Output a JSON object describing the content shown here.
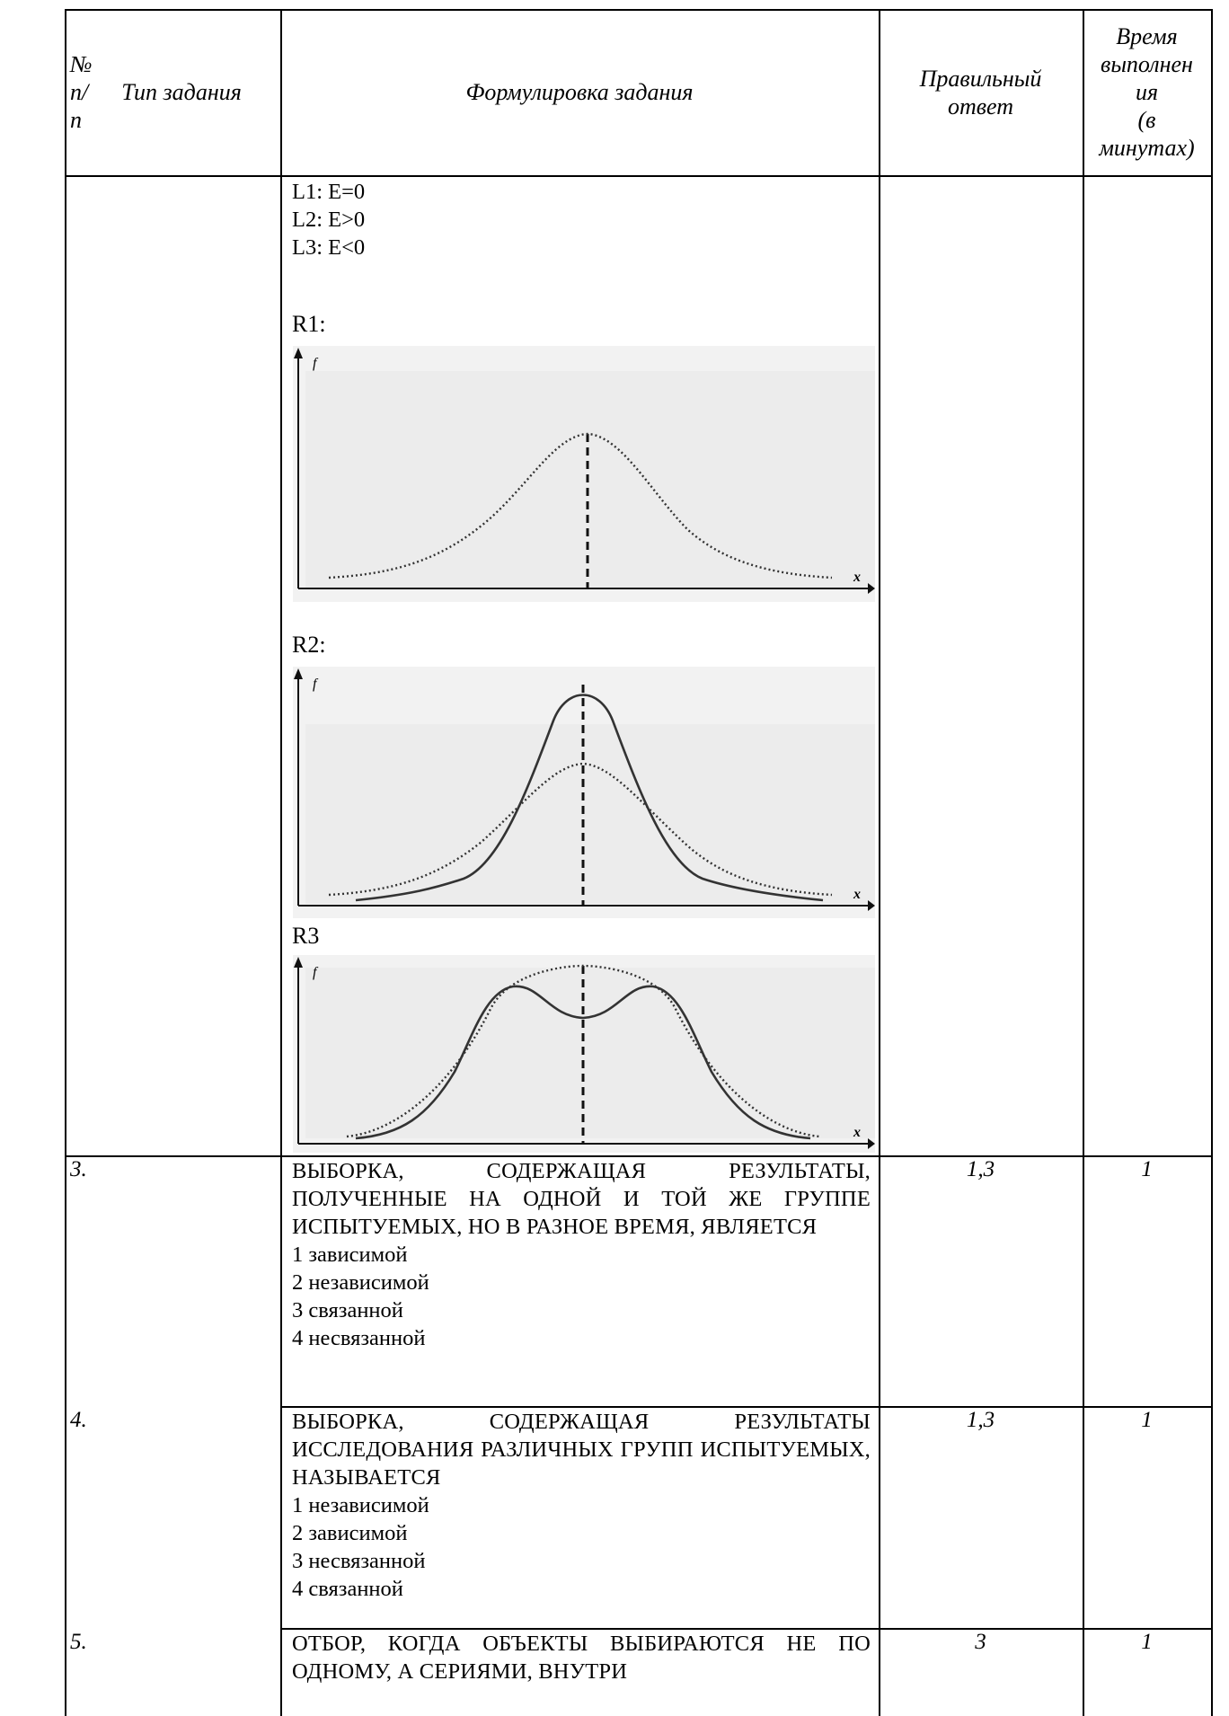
{
  "header": {
    "col1": [
      "№",
      "п/",
      "п"
    ],
    "col2": "Тип задания",
    "col3": "Формулировка задания",
    "col4": [
      "Правильный",
      "ответ"
    ],
    "col5": [
      "Время",
      "выполнен",
      "ия",
      "(в",
      "минутах)"
    ]
  },
  "continuation": {
    "left_items": [
      "L1: E=0",
      "L2: E>0",
      "L3: E<0"
    ],
    "right_labels": [
      "R1:",
      "R2:",
      "R3"
    ],
    "axis_f": "f",
    "axis_x": "x"
  },
  "rows": [
    {
      "number": "3.",
      "question": "ВЫБОРКА, СОДЕРЖАЩАЯ РЕЗУЛЬТАТЫ, ПОЛУЧЕННЫЕ НА ОДНОЙ И ТОЙ ЖЕ ГРУППЕ ИСПЫТУЕМЫХ, НО В РАЗНОЕ ВРЕМЯ, ЯВЛЯЕТСЯ",
      "options": [
        "1 зависимой",
        "2 независимой",
        "3 связанной",
        "4 несвязанной"
      ],
      "answer": "1,3",
      "time": "1"
    },
    {
      "number": "4.",
      "question": "ВЫБОРКА, СОДЕРЖАЩАЯ РЕЗУЛЬТАТЫ ИССЛЕДОВАНИЯ РАЗЛИЧНЫХ ГРУПП ИСПЫТУЕМЫХ, НАЗЫВАЕТСЯ",
      "options": [
        "1 независимой",
        "2 зависимой",
        "3 несвязанной",
        "4 связанной"
      ],
      "answer": "1,3",
      "time": "1"
    },
    {
      "number": "5.",
      "question": "ОТБОР, КОГДА ОБЪЕКТЫ ВЫБИРАЮТСЯ НЕ ПО ОДНОМУ, А СЕРИЯМИ, ВНУТРИ",
      "answer": "3",
      "time": "1"
    }
  ]
}
